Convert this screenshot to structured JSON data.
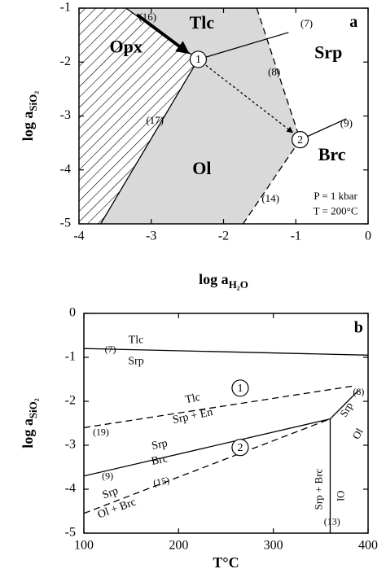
{
  "chart_data": [
    {
      "type": "phase",
      "panel": "a",
      "xlabel": {
        "text": "log a",
        "sub": "H₂O"
      },
      "ylabel": {
        "text": "log a",
        "sub": "SiO₂"
      },
      "xlim": [
        -4,
        0
      ],
      "ylim": [
        -5,
        -1
      ],
      "xticks": [
        -4,
        -3,
        -2,
        -1,
        0
      ],
      "yticks": [
        -1,
        -2,
        -3,
        -4,
        -5
      ],
      "regions": [
        {
          "fill": "#d9d9d9",
          "x": [
            -3.35,
            -1.54,
            -0.94,
            -1.73,
            -3.7,
            -2.35
          ],
          "y": [
            -1,
            -1,
            -3.44,
            -5,
            -5,
            -1.95
          ]
        },
        {
          "fill": "hatch",
          "x": [
            -4,
            -3.35,
            -2.35,
            -3.7,
            -4
          ],
          "y": [
            -1,
            -1,
            -1.95,
            -5,
            -5
          ]
        }
      ],
      "lines": [
        {
          "style": "solid",
          "x": [
            -3.35,
            -2.35
          ],
          "y": [
            -1,
            -1.95
          ]
        },
        {
          "style": "solid",
          "x": [
            -2.35,
            -3.7
          ],
          "y": [
            -1.95,
            -5
          ]
        },
        {
          "style": "solid",
          "x": [
            -2.35,
            -1.1
          ],
          "y": [
            -1.95,
            -1.45
          ]
        },
        {
          "style": "dashed",
          "x": [
            -1.54,
            -0.94
          ],
          "y": [
            -1,
            -3.44
          ]
        },
        {
          "style": "dashed",
          "x": [
            -0.94,
            -1.73
          ],
          "y": [
            -3.44,
            -5
          ]
        },
        {
          "style": "solid",
          "x": [
            -0.94,
            -0.3
          ],
          "y": [
            -3.44,
            -3.05
          ]
        },
        {
          "style": "dotted-arrow",
          "x": [
            -2.35,
            -1.05
          ],
          "y": [
            -1.95,
            -3.3
          ]
        },
        {
          "style": "arrow",
          "x": [
            -3.2,
            -2.5
          ],
          "y": [
            -1.12,
            -1.82
          ]
        }
      ],
      "points": {
        "labels": [
          "1",
          "2"
        ],
        "x": [
          -2.35,
          -0.94
        ],
        "y": [
          -1.95,
          -3.44
        ]
      },
      "annotations": [
        "Opx",
        "Tlc",
        "Srp",
        "Ol",
        "Brc",
        "(16)",
        "(7)",
        "(8)",
        "(17)",
        "(9)",
        "(14)",
        "P = 1 kbar",
        "T = 200°C",
        "a"
      ]
    },
    {
      "type": "phase",
      "panel": "b",
      "xlabel": {
        "text": "T°C"
      },
      "ylabel": {
        "text": "log a",
        "sub": "SiO₂"
      },
      "xlim": [
        100,
        400
      ],
      "ylim": [
        -5,
        0
      ],
      "xticks": [
        100,
        200,
        300,
        400
      ],
      "yticks": [
        0,
        -1,
        -2,
        -3,
        -4,
        -5
      ],
      "regions": [],
      "lines": [
        {
          "style": "solid",
          "x": [
            100,
            400
          ],
          "y": [
            -0.8,
            -0.95
          ]
        },
        {
          "style": "dashed",
          "x": [
            100,
            385
          ],
          "y": [
            -2.6,
            -1.65
          ]
        },
        {
          "style": "solid",
          "x": [
            100,
            360
          ],
          "y": [
            -3.7,
            -2.4
          ]
        },
        {
          "style": "solid",
          "x": [
            360,
            390
          ],
          "y": [
            -2.4,
            -1.75
          ]
        },
        {
          "style": "dashed",
          "x": [
            100,
            360
          ],
          "y": [
            -4.55,
            -2.4
          ]
        },
        {
          "style": "solid",
          "x": [
            360,
            360
          ],
          "y": [
            -2.4,
            -5
          ]
        }
      ],
      "points": {
        "labels": [
          "1",
          "2"
        ],
        "x": [
          265,
          265
        ],
        "y": [
          -1.7,
          -3.05
        ]
      },
      "annotations": [
        "Tlc",
        "Srp",
        "(7)",
        "Tlc",
        "Srp + En",
        "(19)",
        "Srp",
        "Brc",
        "(9)",
        "Srp",
        "Ol + Brc",
        "(15)",
        "Srp",
        "Ol",
        "(8)",
        "Srp + Brc",
        "Ol",
        "(13)",
        "b"
      ]
    }
  ]
}
